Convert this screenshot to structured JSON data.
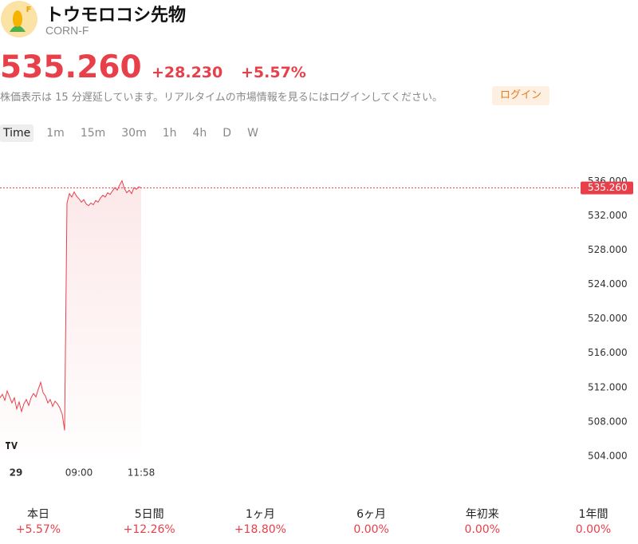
{
  "header": {
    "badge": "F",
    "title": "トウモロコシ先物",
    "symbol": "CORN-F"
  },
  "quote": {
    "price": "535.260",
    "change": "+28.230",
    "percent": "+5.57%",
    "notice": "株価表示は 15 分遅延しています。リアルタイムの市場情報を見るにはログインしてください。",
    "login": "ログイン"
  },
  "intervals": [
    "Time",
    "1m",
    "15m",
    "30m",
    "1h",
    "4h",
    "D",
    "W"
  ],
  "chart_data": {
    "type": "line",
    "color": "#e8404a",
    "categories": [
      null,
      null,
      null,
      null,
      "29",
      null,
      null,
      null,
      null,
      null,
      null,
      null,
      null,
      null,
      null,
      null,
      null,
      null,
      null,
      null,
      null,
      null,
      null,
      null,
      null,
      null,
      null,
      null,
      null,
      null,
      null,
      null,
      null,
      "09:00",
      null,
      null,
      null,
      null,
      null,
      null,
      null,
      null,
      null,
      null,
      null,
      null,
      null,
      null,
      null,
      null,
      null,
      null,
      null,
      null,
      null,
      null,
      null,
      null,
      null,
      "11:58"
    ],
    "values": [
      510.8,
      511.2,
      510.5,
      511.6,
      510.9,
      510.2,
      510.8,
      509.5,
      510.3,
      509.2,
      510.1,
      510.6,
      509.9,
      510.8,
      511.3,
      510.9,
      511.8,
      512.6,
      511.4,
      511.0,
      510.2,
      510.6,
      509.8,
      510.4,
      510.1,
      509.6,
      508.9,
      507.0,
      533.5,
      534.6,
      534.2,
      534.8,
      534.3,
      534.0,
      533.6,
      533.9,
      533.4,
      533.2,
      533.5,
      533.3,
      533.8,
      533.6,
      534.1,
      534.4,
      534.2,
      534.7,
      534.5,
      534.9,
      535.3,
      535.0,
      535.6,
      536.1,
      535.2,
      534.7,
      535.0,
      534.6,
      535.3,
      535.1,
      535.4,
      535.26
    ],
    "ylim": [
      502.4,
      539.5
    ],
    "yticks": [
      {
        "value": 504,
        "label": "504.000"
      },
      {
        "value": 508,
        "label": "508.000"
      },
      {
        "value": 512,
        "label": "512.000"
      },
      {
        "value": 516,
        "label": "516.000"
      },
      {
        "value": 520,
        "label": "520.000"
      },
      {
        "value": 524,
        "label": "524.000"
      },
      {
        "value": 528,
        "label": "528.000"
      },
      {
        "value": 532,
        "label": "532.000"
      },
      {
        "value": 536,
        "label": "536.000"
      }
    ],
    "last_value": {
      "value": 535.26,
      "label": "535.260"
    }
  },
  "periods": [
    {
      "label": "本日",
      "value": "+5.57%"
    },
    {
      "label": "5日間",
      "value": "+12.26%"
    },
    {
      "label": "1ヶ月",
      "value": "+18.80%"
    },
    {
      "label": "6ヶ月",
      "value": "0.00%"
    },
    {
      "label": "年初来",
      "value": "0.00%"
    },
    {
      "label": "1年間",
      "value": "0.00%"
    }
  ]
}
